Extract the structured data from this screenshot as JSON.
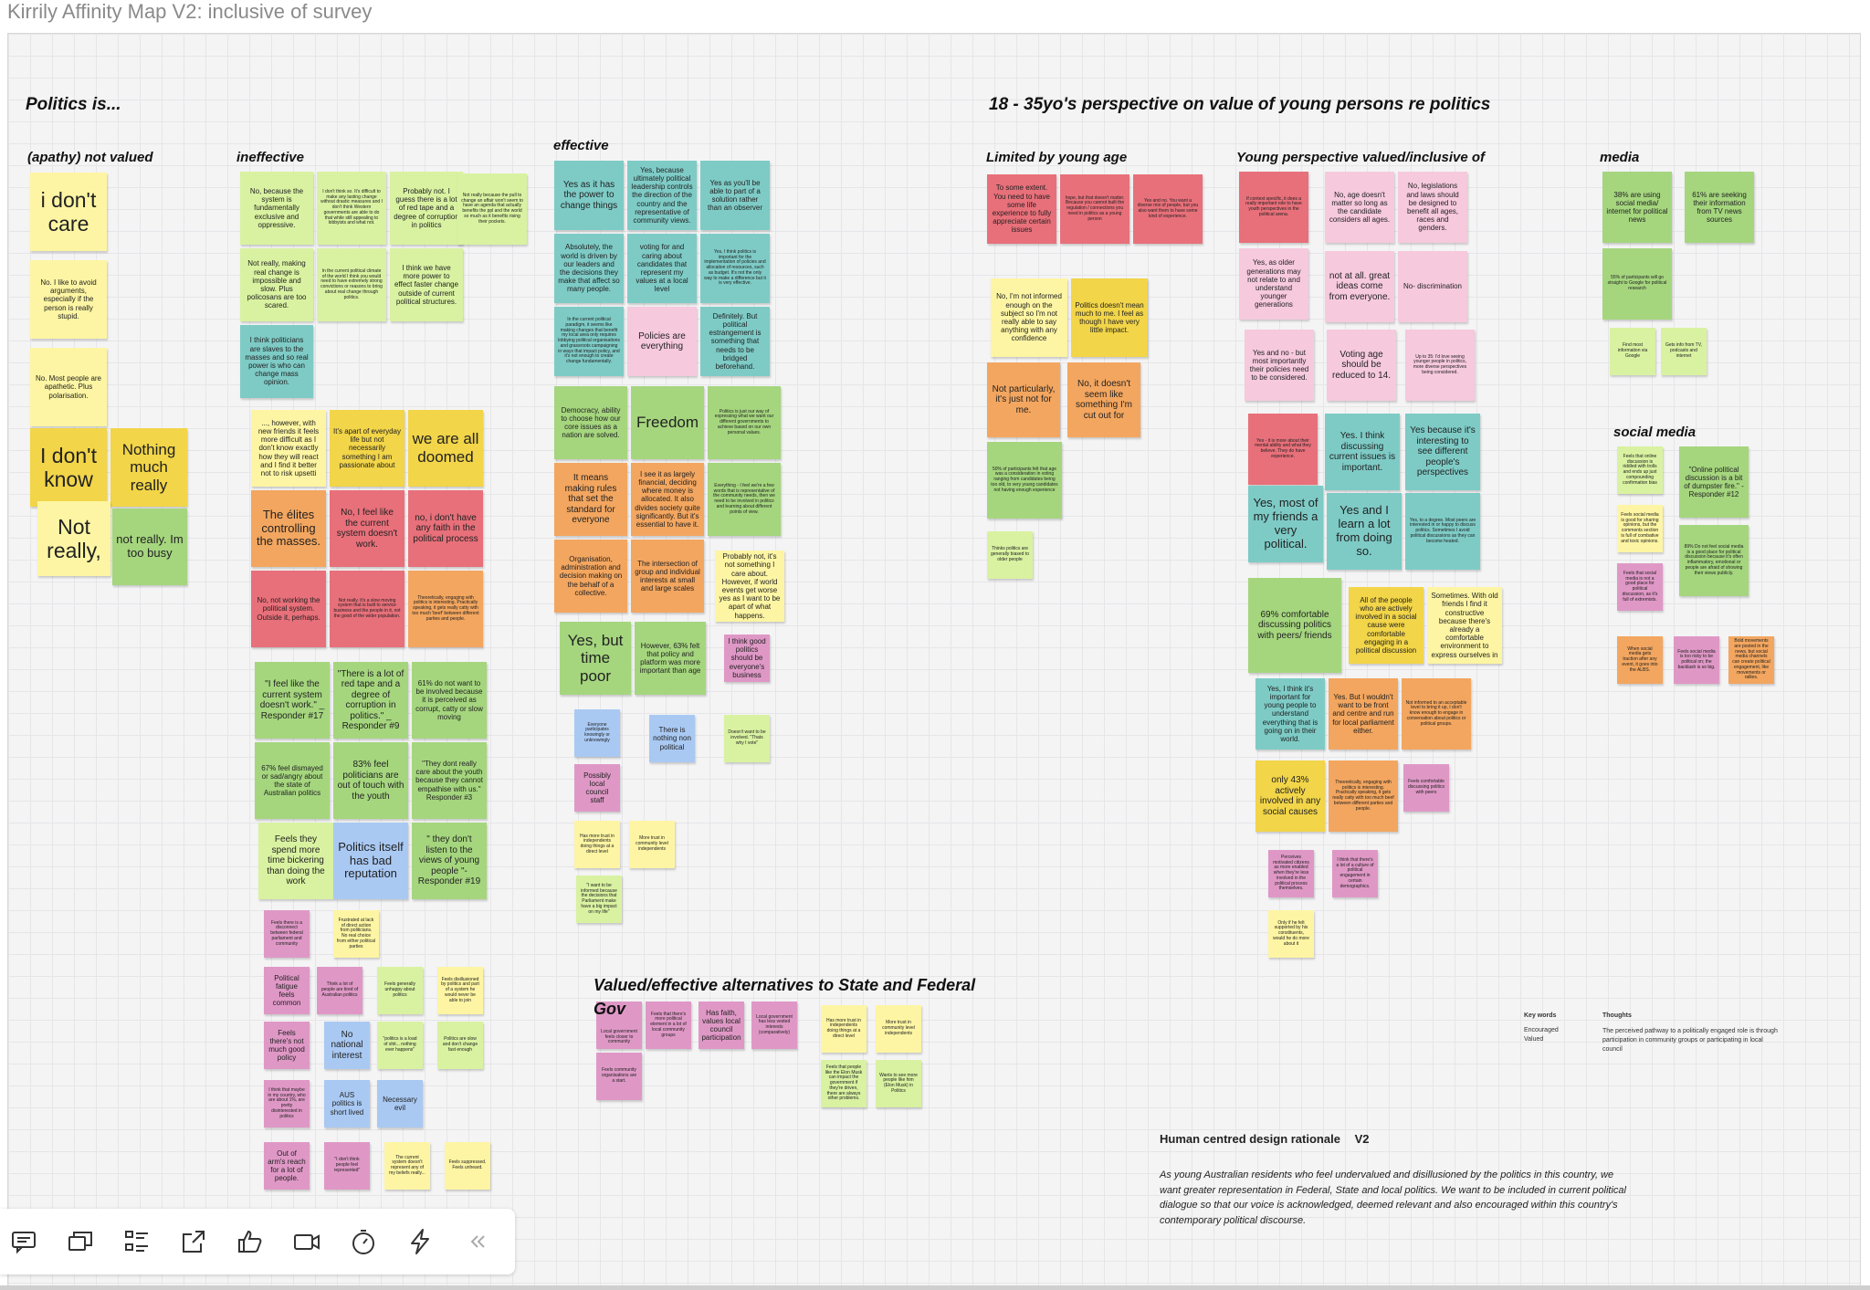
{
  "title": "Kirrily Affinity Map V2: inclusive of survey",
  "headings": {
    "politics_is": "Politics is...",
    "perspective": "18 - 35yo's perspective on value of young persons re politics",
    "apathy": "(apathy) not valued",
    "ineffective": "ineffective",
    "effective": "effective",
    "limited": "Limited by young age",
    "young_valued": "Young perspective valued/inclusive of",
    "media": "media",
    "social_media": "social media",
    "alternatives": "Valued/effective alternatives to State and Federal",
    "gov": "Gov"
  },
  "notes": {
    "dont_care": "i don't care",
    "avoid_arguments": "No. I like to avoid arguments, especially if the person is really stupid.",
    "apathetic": "No. Most people are apathetic. Plus polarisation.",
    "dont_know": "I don't know",
    "nothing_much": "Nothing much really",
    "not_really": "Not really,",
    "too_busy": "not really. Im too busy",
    "fundamentally_exclusive": "No, because the system is fundamentally exclusive and oppressive.",
    "im_too_small": "I don't think so. It's difficult to make any lasting change without drastic measures and I don't think Western governments are able to do that while still appealing to lobbyists and what not.",
    "red_tape_corruption": "Probably not. I guess there is a lot of red tape and a degree of corruption in politics",
    "pass_agenda": "Not really because the pull to change an affair won't seem to have an agenda that actually benefits the ppl and the world so much as it benefits rising their pockets.",
    "real_change": "Not really, making real change is impossible and slow. Plus policosans are too scared.",
    "current_political_climate": "In the current political climate of the world I think you would need to have extremely strong convictions or reasons to bring about real change through politics.",
    "more_power": "I think we have more power to effect faster change outside of current political structures.",
    "slaves": "I think politicians are slaves to the masses and so real power is who can change mass opinion.",
    "new_friends": "..., however, with new friends it feels more difficult as I don't know exactly how they will react and I find it better not to risk upsetti",
    "everyday_life": "It's apart of everyday life but not necessarily something I am passionate about",
    "all_doomed": "we are all doomed",
    "elites": "The élites controlling the masses.",
    "system_doesnt_work": "No, I feel like the current system doesn't work.",
    "no_faith": "no, i don't have any faith in the political process",
    "not_working": "No, not working the political system. Outside it, perhaps.",
    "slow_moving": "Not really. It's a slow moving system that is built to service business and the people in it, not the good of the wider population.",
    "theoretically": "Theoretically, engaging with politics is interesting. Practically speaking, it gets really catty with too much 'beef' between different parties and people.",
    "resp17": "\"I feel like the current system doesn't work.\" _ Responder #17",
    "resp9": "\"There is a lot of red tape and a degree of corruption in politics.\" _ Responder #9",
    "pct61_involved": "61% do not want to be involved because it is perceived as corrupt, catty or slow moving",
    "pct67_dismayed": "67% feel dismayed or sad/angry about the state of Australian politics",
    "pct83_out_of_touch": "83% feel politicians are out of touch with the youth",
    "resp3": "\"They dont really care about the youth because they cannot empathise with us.\" Responder #3",
    "bickering": "Feels they spend more time bickering than doing the work",
    "bad_reputation": "Politics itself has bad reputation",
    "resp19": "\" they don't listen to the views of young people \"- Responder #19",
    "disconnect": "Feels there is a disconnect between federal parliament and community",
    "frustrated": "Frustrated at lack of direct action from politicians. No real choice from either political parties",
    "political_fatigue": "Political fatigue feels common",
    "tired": "Think a lot of people are tired of Australian politics",
    "unhappy": "Feels generally unhappy about politics",
    "disillusioned": "Feels disillusioned by politics and part of a system he would never be able to join",
    "not_much_good": "Feels there's not much good policy",
    "no_interest": "No national interest",
    "load_of_shit": "\"politics is a load of shit... nothing ever happens\"",
    "slow_change": "Politics are slow and don't change fast enough",
    "maybe_country": "I think that maybe in my country, who are about 1%, are pretty disinterested in politics",
    "aus_short_lived": "AUS politics is short lived",
    "necessary_evil": "Necessary evil",
    "arms_reach": "Out of arm's reach for a lot of people.",
    "not_represented": "\"I don't think people feel represented\"",
    "current_system": "The current system doesn't represent any of my beliefs really...",
    "suppressed": "Feels suppressed. Feels unheard.",
    "power_to_change": "Yes as it has the power to change things",
    "ultimately_leadership": "Yes, because ultimately political leadership controls the direction of the country and the representative of community views.",
    "part_of_solution": "Yes as you'll be able to part of a solution rather than an observer",
    "world_driven": "Absolutely, the world is driven by our leaders and the decisions they make that affect so many people.",
    "voting_caring": "voting for and caring about candidates that represent my values at a local level",
    "important_implementation": "Yes, I think politics is important for the implementation of policies and allocation of resources, such as budget. It's not the only way to make a difference but it is very effective.",
    "current_political_paradigm": "In the current political paradigm, it seems like making changes that benefit my local area only requires lobbying political organisations and grassroots campaigning in ways that impact policy, and it's not enough to create change fundamentally.",
    "policies_everything": "Policies are everything",
    "political_estrangement": "Definitely. But political estrangement is something that needs to be bridged beforehand.",
    "democracy": "Democracy, ability to choose how our core issues as a nation are solved.",
    "freedom": "Freedom",
    "our_way": "Politics is just our way of expressing what we want our different governments to achieve based on our own personal values.",
    "making_rules": "It means making rules that set the standard for everyone",
    "financial_deciding": "I see it as largely financial, deciding where money is allocated. It also divides society quite significantly. But it's essential to have it.",
    "everything_few": "Everything - I feel we're a few words that is representative of the community needs, then we need to be involved in politics and learning about different points of view.",
    "organisation": "Organisation, administration and decision making on the behalf of a collective.",
    "intersection": "The intersection of group and individual interests at small and large scales",
    "probably_not_care": "Probably not, it's not something I care about. However, if world events get worse yes as I want to be apart of what happens.",
    "time_poor": "Yes, but time poor",
    "pct63_policy": "However, 63% felt that policy and platform was more important than age",
    "think_good": "I think good politics should be everyone's business",
    "everyone_participates": "Everyone participates knowingly or unknowingly",
    "nothing_non_political": "There is nothing non political",
    "dont_want_involved": "Doesn't want to be involved. \"Thats why I vote\"",
    "local_council_staff": "Possibly local council staff",
    "trust_independents": "Has more trust in independents doing things at a direct level",
    "trust_community": "More trust in community level independents",
    "informed_decisions": "\"I want to be informed because the decisions that Parliament make have a big impact on my life\"",
    "some_extent": "To some extent. You need to have some life experience to fully appreciate certain issues",
    "hope_not": "hope, but that doesn't matter. Because you cannot built the regulation / connections you need in politics as a young person",
    "yes_and_no_experience": "Yes and no. You want a diverse mix of people, but you also want them to have some kind of experience.",
    "not_informed": "No, I'm not informed enough on the subject so I'm not really able to say anything with any confidence",
    "doesnt_mean_much": "Politics doesn't mean much to me. I feel as though I have very little impact.",
    "not_particularly": "Not particularly, it's just not for me.",
    "not_cut_out": "No, it doesn't seem like something I'm cut out for",
    "pct50_age": "50% of participants felt that age was a consideration in voting ranging from candidates being too old, to very young candidates not having enough experience",
    "older_people": "Thinks politics are generally biased to older people",
    "if_context": "If context specific, it does a really important role to have youth perspectives in the political arena.",
    "no_age_matter": "No, age doesn't matter so long as the candidate considers all ages.",
    "no_legislations": "No, legislations and laws should be designed to benefit all ages, races and genders.",
    "older_generations": "Yes, as older generations may not relate to and understand younger generations",
    "great_ideas": "not at all. great ideas come from everyone.",
    "no_discrimination": "No- discrimination",
    "yes_and_no": "Yes and no - but most importantly their policies need to be considered.",
    "voting_age": "Voting age should be reduced to 14.",
    "up_to_35": "Up to 35: I'd love seeing younger people in politics, more diverse perspectives being considered.",
    "yes_its_more": "Yes - it is more about their mental ability and what they believe. They do have experience.",
    "discussing_issues": "Yes. I think discussing current issues is important.",
    "different_perspectives": "Yes because it's interesting to see different people's perspectives",
    "yes_very_political": "Yes, most of my friends a very political.",
    "learn_lot": "Yes and I learn a lot from doing so.",
    "discuss_political": "Yes, to a degree. Most peers are interested in or happy to discuss politics. Sometimes I avoid political discussions as they can become heated.",
    "pct69_comfortable": "69% comfortable discussing politics with peers/ friends",
    "all_people_active": "All of the people who are actively involved in a social cause were comfortable engaging in a political discussion",
    "old_friends": "Sometimes. With old friends I find it constructive because there's already a comfortable environment to express ourselves in",
    "important_young": "Yes, I think it's important for young people to understand everything that is going on in their world.",
    "front_centre": "Yes. But I wouldn't want to be front and centre and run for local parliament either.",
    "not_informed_enough": "Not informed to an acceptable level to bring it up, I don't know enough to engage in conversation about politics or political groups.",
    "pct43_active": "only 43% actively involved in any social causes",
    "engaging_catty": "Theoretically, engaging with politics is interesting. Practically speaking, it gets really catty with too much beef between different parties and people.",
    "feels_comfortable": "Feels comfortable discussing politics with peers",
    "perceives_enabled": "Perceives motivated citizens as more enabled when they're less involved in the political process themselves.",
    "future_political": "I think that there's a lot of a culture of political engagement in certain demographics.",
    "only_if_supported": "Only if he felt supported by his constituents, would he do more about it",
    "pct38_social": "38% are using social media/ internet for political news",
    "pct61_tv": "61% are seeking their information from TV news sources",
    "pct55_google": "55% of participants will go straight to Google for political research",
    "find_most_google": "Find most information via Google",
    "tv_podcasts": "Gets info from TV, podcasts and internet",
    "online_ridden": "Feels that online discussion is riddled with trolls and ends up just compounding confirmation bias",
    "online_dumpster": "\"Online political discussion is a bit of dumpster fire.\" - Responder #12",
    "social_media_good": "Feels social media is good for sharing opinions, but the comments section is full of combative and toxic opinions.",
    "not_good_place": "Feels that social media is not a good place for political discussion, as it's full of extremists.",
    "pct89_forum": "89% Do not feel social media is a good place for political discussion because it's often inflammatory, emotional or people are afraid of showing their views publicly.",
    "media_gets_traction": "When social media gets traction after any event, it goes into the ALBS.",
    "too_risky": "Feels social media is too risky to be political on; the backlash is so big.",
    "bold_movements": "Bold movements are posted in the news, but social media channels can create political engagement, like movements or rallies.",
    "closer_community": "Local government feels closer to community",
    "centralised": "Feels that there's more political element in a lot of local community groups",
    "faith_local": "Has faith, values local council participation",
    "local_invested": "Local government has less vested interests (comparatively)",
    "community_orgs": "Feels community organisations are a start.",
    "trust_independents_2": "Has more trust in independents doing things at a direct level",
    "trust_community_2": "More trust in community level independents",
    "elon": "Feels that people like the Elon Musk can impact the government if they're driven, there are always other problems.",
    "more_like_elon": "Wants to see more people like him (Elon Musk) in Politics"
  },
  "legend": {
    "keywords_label": "Key words",
    "keywords_1": "Encouraged",
    "keywords_2": "Valued",
    "thoughts_label": "Thoughts",
    "thoughts_text": "The perceived pathway to a politically engaged role is through participation in community groups or participating in local council"
  },
  "rationale": {
    "title": "Human centred design rationale",
    "version": "V2",
    "text": "As young Australian residents who feel undervalued and disillusioned by the politics in this country, we want greater representation in Federal, State and local politics. We want to be included in current political dialogue so that our voice is acknowledged, deemed relevant and also encouraged within this country's contemporary political discourse."
  },
  "toolbar": [
    {
      "name": "comment-icon"
    },
    {
      "name": "frames-icon"
    },
    {
      "name": "checklist-icon"
    },
    {
      "name": "share-export-icon"
    },
    {
      "name": "thumbs-up-icon"
    },
    {
      "name": "video-camera-icon"
    },
    {
      "name": "timer-icon"
    },
    {
      "name": "lightning-icon"
    },
    {
      "name": "collapse-chevrons-icon"
    }
  ],
  "colors": {
    "yellow": "#fdf5a3",
    "gold": "#f2d548",
    "green": "#a5d67e",
    "lime": "#d9f2a1",
    "teal": "#7ecbc6",
    "red": "#e8707a",
    "orange": "#f3a65f",
    "pink": "#f6c9dd",
    "magenta": "#df98c6",
    "blue": "#a9c9f3"
  }
}
